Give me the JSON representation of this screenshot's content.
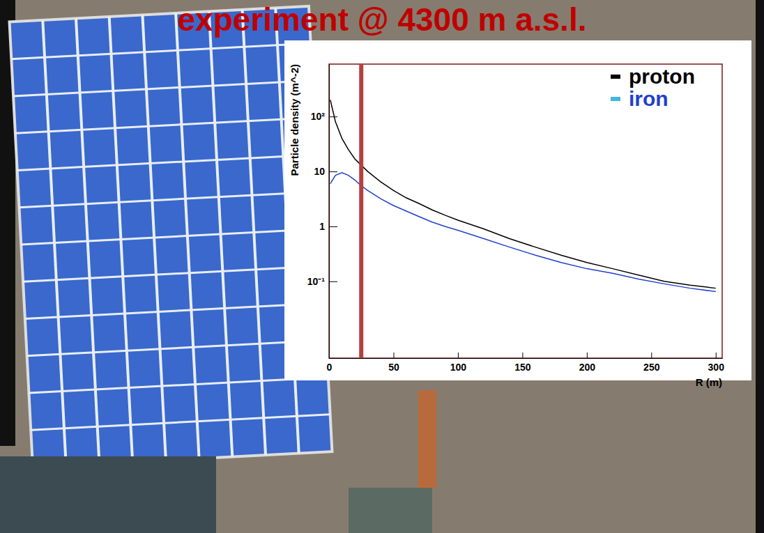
{
  "header": {
    "title": "experiment @ 4300 m a.s.l."
  },
  "chart_data": {
    "type": "line",
    "x_label": "R (m)",
    "y_label": "Particle density (m^-2)",
    "log": "y",
    "grid": false,
    "legend": "upper right",
    "x": [
      1,
      5,
      10,
      15,
      20,
      25,
      30,
      40,
      50,
      60,
      70,
      80,
      90,
      100,
      120,
      140,
      160,
      180,
      200,
      220,
      240,
      260,
      280,
      300
    ],
    "series": [
      {
        "name": "proton",
        "color": "#000000",
        "values": [
          200,
          80,
          40,
          25,
          17,
          13,
          10,
          6.5,
          4.5,
          3.3,
          2.6,
          2.0,
          1.6,
          1.3,
          0.9,
          0.6,
          0.42,
          0.3,
          0.22,
          0.17,
          0.13,
          0.1,
          0.085,
          0.075
        ]
      },
      {
        "name": "iron",
        "color": "#1f3fd0",
        "values": [
          6,
          8.5,
          9.5,
          8.5,
          7,
          5.5,
          4.5,
          3.2,
          2.4,
          1.9,
          1.5,
          1.2,
          1.0,
          0.85,
          0.6,
          0.42,
          0.3,
          0.22,
          0.17,
          0.14,
          0.11,
          0.09,
          0.075,
          0.065
        ]
      }
    ],
    "vlines": [
      25
    ],
    "xlim": [
      0,
      305
    ],
    "xticks": [
      0,
      50,
      100,
      150,
      200,
      250,
      300
    ],
    "ylim": [
      0.004,
      900
    ],
    "yticks": [
      {
        "value": 0.1,
        "label": "10⁻¹"
      },
      1,
      10,
      {
        "value": 100,
        "label": "10²"
      }
    ]
  }
}
